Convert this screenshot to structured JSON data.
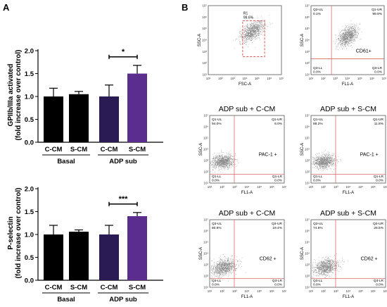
{
  "panel_labels": {
    "a": "A",
    "b": "B"
  },
  "colors": {
    "basal": "#000000",
    "adp_ccm": "#2b1b54",
    "adp_scm": "#5a2d8e",
    "quadrant_line": "#d86a6a",
    "gate": "#d84040"
  },
  "chart_data": [
    {
      "type": "bar",
      "ylabel": "GPIIb/IIIa activated",
      "ylabel2": "(fold increase over control)",
      "categories": [
        "C-CM",
        "S-CM",
        "C-CM",
        "S-CM"
      ],
      "groups": [
        {
          "label": "Basal",
          "span": [
            0,
            1
          ]
        },
        {
          "label": "ADP sub",
          "span": [
            2,
            3
          ]
        }
      ],
      "values": [
        1.0,
        1.05,
        1.0,
        1.5
      ],
      "errors": [
        0.18,
        0.06,
        0.25,
        0.18
      ],
      "ylim": [
        0,
        2.0
      ],
      "yticks": [
        "0.0",
        "0.5",
        "1.0",
        "1.5",
        "2.0"
      ],
      "significance": {
        "between": [
          2,
          3
        ],
        "label": "*"
      }
    },
    {
      "type": "bar",
      "ylabel": "P-selectin",
      "ylabel2": "(fold increase over control)",
      "categories": [
        "C-CM",
        "S-CM",
        "C-CM",
        "S-CM"
      ],
      "groups": [
        {
          "label": "Basal",
          "span": [
            0,
            1
          ]
        },
        {
          "label": "ADP sub",
          "span": [
            2,
            3
          ]
        }
      ],
      "values": [
        1.0,
        1.06,
        1.0,
        1.4
      ],
      "errors": [
        0.2,
        0.04,
        0.2,
        0.08
      ],
      "ylim": [
        0,
        2.0
      ],
      "yticks": [
        "0.0",
        "0.5",
        "1.0",
        "1.5",
        "2.0"
      ],
      "significance": {
        "between": [
          2,
          3
        ],
        "label": "***"
      }
    },
    {
      "type": "scatter",
      "title": "",
      "xlabel": "FSC-A",
      "ylabel": "SSC-A",
      "ticks": [
        "10¹",
        "10²",
        "10³",
        "10⁴",
        "10⁵",
        "10⁶",
        "10⁷"
      ],
      "gate": {
        "name": "R1",
        "pct": "99.6%"
      },
      "quadrants": null,
      "label": ""
    },
    {
      "type": "scatter",
      "title": "",
      "xlabel": "FL1-A",
      "ylabel": "SSC-A",
      "ticks": [
        "10¹",
        "10²",
        "10³",
        "10⁴",
        "10⁵",
        "10⁶",
        "10⁷"
      ],
      "quadrants": {
        "ul": [
          "Q3-UL",
          "0.1%"
        ],
        "ur": [
          "Q1-UR",
          "99.9%"
        ],
        "ll": [
          "Q3-LL",
          "0.0%"
        ],
        "lr": [
          "Q3-LR",
          "0.0%"
        ]
      },
      "label": "CD61+"
    },
    {
      "type": "scatter",
      "title": "ADP sub + C-CM",
      "xlabel": "FL1-A",
      "ylabel": "SSC-A",
      "ticks": [
        "10¹",
        "10²",
        "10³",
        "10⁴",
        "10⁵",
        "10⁶",
        "10⁷"
      ],
      "quadrants": {
        "ul": [
          "Q1-UL",
          "94.0%"
        ],
        "ur": [
          "Q1-UR",
          "6.0%"
        ],
        "ll": [
          "Q1-LL",
          "0.0%"
        ],
        "lr": [
          "Q1-LR",
          "0.0%"
        ]
      },
      "label": "PAC-1 +"
    },
    {
      "type": "scatter",
      "title": "ADP sub + S-CM",
      "xlabel": "FL1-A",
      "ylabel": "SSC-A",
      "ticks": [
        "10¹",
        "10²",
        "10³",
        "10⁴",
        "10⁵",
        "10⁶",
        "10⁷"
      ],
      "quadrants": {
        "ul": [
          "Q1-UL",
          "88.2%"
        ],
        "ur": [
          "Q1-UR",
          "11.8%"
        ],
        "ll": [
          "Q1-LL",
          "0.0%"
        ],
        "lr": [
          "Q1-LR",
          "0.0%"
        ]
      },
      "label": "PAC-1 +"
    },
    {
      "type": "scatter",
      "title": "ADP sub + C-CM",
      "xlabel": "FL1-A",
      "ylabel": "SSC-A",
      "ticks": [
        "10¹",
        "10²",
        "10³",
        "10⁴",
        "10⁵",
        "10⁶",
        "10⁷"
      ],
      "quadrants": {
        "ul": [
          "Q3-UL",
          "80.6%"
        ],
        "ur": [
          "Q3-UR",
          "19.4%"
        ],
        "ll": [
          "Q3-LL",
          "0.0%"
        ],
        "lr": [
          "Q3-LR",
          "0.0%"
        ]
      },
      "label": "CD62 +"
    },
    {
      "type": "scatter",
      "title": "ADP sub + S-CM",
      "xlabel": "FL1-A",
      "ylabel": "SSC-A",
      "ticks": [
        "10¹",
        "10²",
        "10³",
        "10⁴",
        "10⁵",
        "10⁶",
        "10⁷"
      ],
      "quadrants": {
        "ul": [
          "Q3-UL",
          "74.5%"
        ],
        "ur": [
          "Q3-UR",
          "25.5%"
        ],
        "ll": [
          "Q3-LL",
          "0.0%"
        ],
        "lr": [
          "Q3-LR",
          "0.0%"
        ]
      },
      "label": "CD62 +"
    }
  ]
}
